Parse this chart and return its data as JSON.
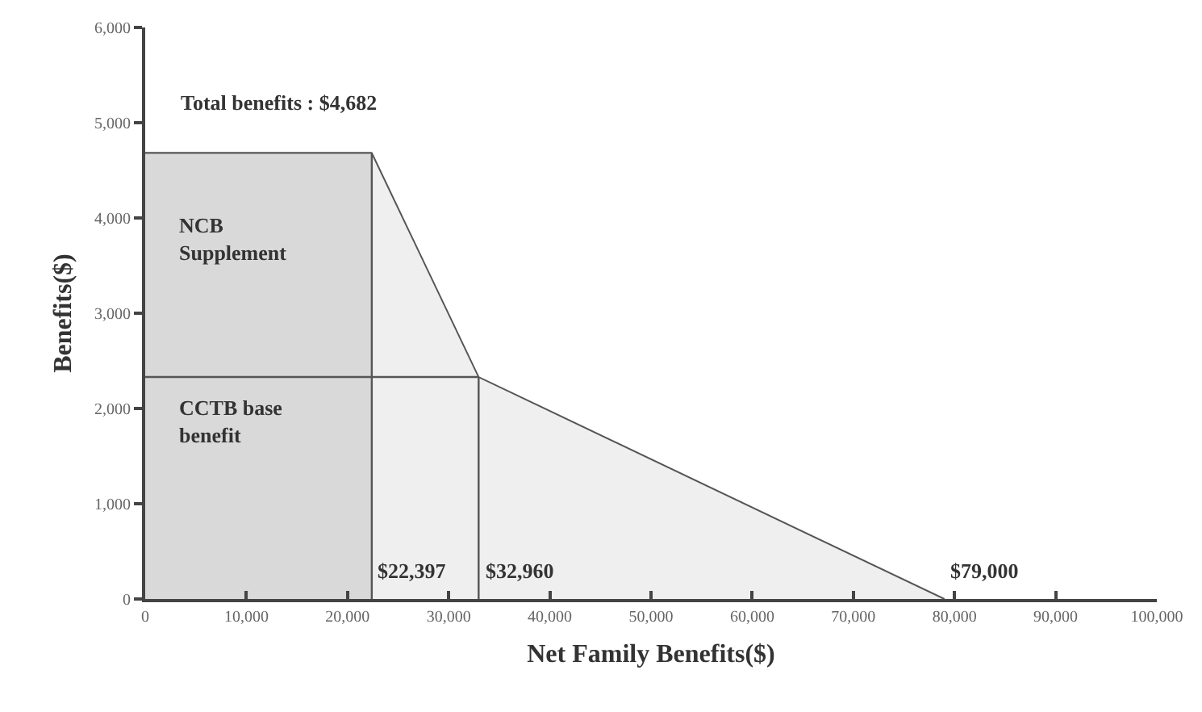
{
  "chart_data": {
    "type": "area",
    "xlabel": "Net Family Benefits($)",
    "ylabel": "Benefits($)",
    "xlim": [
      0,
      100000
    ],
    "ylim": [
      0,
      6000
    ],
    "xticks": [
      {
        "value": 0,
        "label": "0"
      },
      {
        "value": 10000,
        "label": "10,000"
      },
      {
        "value": 20000,
        "label": "20,000"
      },
      {
        "value": 30000,
        "label": "30,000"
      },
      {
        "value": 40000,
        "label": "40,000"
      },
      {
        "value": 50000,
        "label": "50,000"
      },
      {
        "value": 60000,
        "label": "60,000"
      },
      {
        "value": 70000,
        "label": "70,000"
      },
      {
        "value": 80000,
        "label": "80,000"
      },
      {
        "value": 90000,
        "label": "90,000"
      },
      {
        "value": 100000,
        "label": "100,000"
      }
    ],
    "yticks": [
      {
        "value": 0,
        "label": "0"
      },
      {
        "value": 1000,
        "label": "1,000"
      },
      {
        "value": 2000,
        "label": "2,000"
      },
      {
        "value": 3000,
        "label": "3,000"
      },
      {
        "value": 4000,
        "label": "4,000"
      },
      {
        "value": 5000,
        "label": "5,000"
      },
      {
        "value": 6000,
        "label": "6,000"
      }
    ],
    "series": [
      {
        "color": "#efefef",
        "x": [
          0,
          22397,
          32960,
          79000
        ],
        "values": [
          4682,
          4682,
          2330,
          0
        ]
      },
      {
        "color": "#d9d9d9",
        "x": [
          0,
          22397
        ],
        "values": [
          4682,
          4682
        ]
      },
      {
        "type": "line",
        "color": "#555555",
        "x": [
          0,
          32960
        ],
        "values": [
          2330,
          2330
        ]
      },
      {
        "type": "line",
        "color": "#555555",
        "x": [
          22397,
          22397
        ],
        "values": [
          0,
          4682
        ]
      },
      {
        "type": "line",
        "color": "#555555",
        "x": [
          32960,
          32960
        ],
        "values": [
          0,
          2330
        ]
      }
    ],
    "annotations": [
      {
        "text": "Total benefits : $4,682",
        "x": 0,
        "y": 4682
      },
      "NCB Supplement",
      "CCTB base benefit",
      {
        "text": "$22,397",
        "x": 22397,
        "y": 0
      },
      {
        "text": "$32,960",
        "x": 32960,
        "y": 0
      },
      {
        "text": "$79,000",
        "x": 79000,
        "y": 0
      }
    ],
    "grid": false,
    "marker": "none",
    "line_style": "solid"
  }
}
